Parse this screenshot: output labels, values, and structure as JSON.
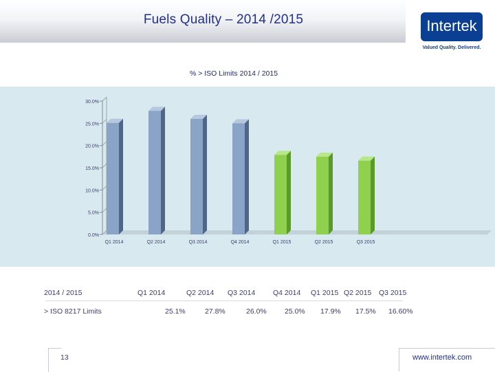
{
  "slide": {
    "title": "Fuels Quality – 2014 /2015",
    "logo_text": "Intertek",
    "tagline": "Valued Quality. Delivered.",
    "page_number": "13",
    "url": "www.intertek.com"
  },
  "colors": {
    "bar_2014": "#8aa4c8",
    "bar_2015": "#8fd14f",
    "plot_bg": "#d8eaef"
  },
  "chart_data": {
    "type": "bar",
    "title": "% > ISO Limits 2014 / 2015",
    "categories": [
      "Q1 2014",
      "Q2 2014",
      "Q3 2014",
      "Q4 2014",
      "Q1 2015",
      "Q2 2015",
      "Q3 2015"
    ],
    "values": [
      25.1,
      27.8,
      26.0,
      25.0,
      17.9,
      17.5,
      16.6
    ],
    "ylim": [
      0,
      30
    ],
    "yticks": [
      "0.0%",
      "5.0%",
      "10.0%",
      "15.0%",
      "20.0%",
      "25.0%",
      "30.0%"
    ],
    "xlabel": "",
    "ylabel": "",
    "grid": false,
    "legend": "none"
  },
  "table": {
    "header_label": "2014 / 2015",
    "row_label": "> ISO 8217 Limits",
    "columns": [
      "Q1 2014",
      "Q2 2014",
      "Q3 2014",
      "Q4 2014",
      "Q1 2015",
      "Q2 2015",
      "Q3 2015"
    ],
    "values": [
      "25.1%",
      "27.8%",
      "26.0%",
      "25.0%",
      "17.9%",
      "17.5%",
      "16.60%"
    ]
  }
}
